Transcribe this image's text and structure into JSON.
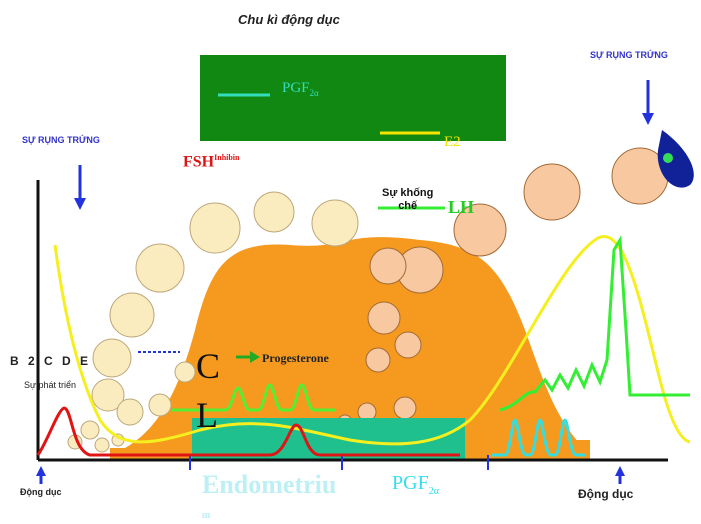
{
  "title": "Chu kì động dục",
  "legend": {
    "pgf_label": "PGF",
    "pgf_sub": "2α",
    "e2_label": "E2",
    "pgf_color": "#33ddbb",
    "e2_color": "#f5e400",
    "box_color": "#118811"
  },
  "labels": {
    "fsh": "FSH",
    "fsh_note": "Inhibin",
    "ovulation_left": "SỰ RỤNG TRỨNG",
    "ovulation_right": "SỰ RỤNG TRỨNG",
    "inhibit_line1": "Sự khống",
    "inhibit_line2": "chế",
    "lh": "LH",
    "progesterone": "Progesterone",
    "corpus_c": "C",
    "corpus_l": "L",
    "side_dots": "B 2 C D E",
    "follicle_growth": "Sự phát triển",
    "estrus_left": "Động dục",
    "estrus_right": "Động dục",
    "endometrium": "Endometriu",
    "endometrium_tail": "m",
    "pgf_bottom": "PGF",
    "pgf_bottom_sub": "2α"
  },
  "colors": {
    "corpus_luteum": "#f59a1f",
    "endometrium": "#1fbf8e",
    "progesterone_wave": "#55ee33",
    "lh_line": "#33ee33",
    "estrogen": "#f5ef1f",
    "fsh": "#e01414",
    "pgf_pulse": "#33dde0",
    "follicle_small": "#fbecc0",
    "follicle_large": "#f8c8a0",
    "ovulation_arrow": "#2233dd"
  },
  "icons": {
    "ovulation_left_arrow": "arrow-down-icon",
    "ovulation_right_arrow": "arrow-down-icon",
    "estrus_left_arrow": "arrow-up-icon",
    "estrus_right_arrow": "arrow-up-icon",
    "ovum": "ovum-icon"
  }
}
